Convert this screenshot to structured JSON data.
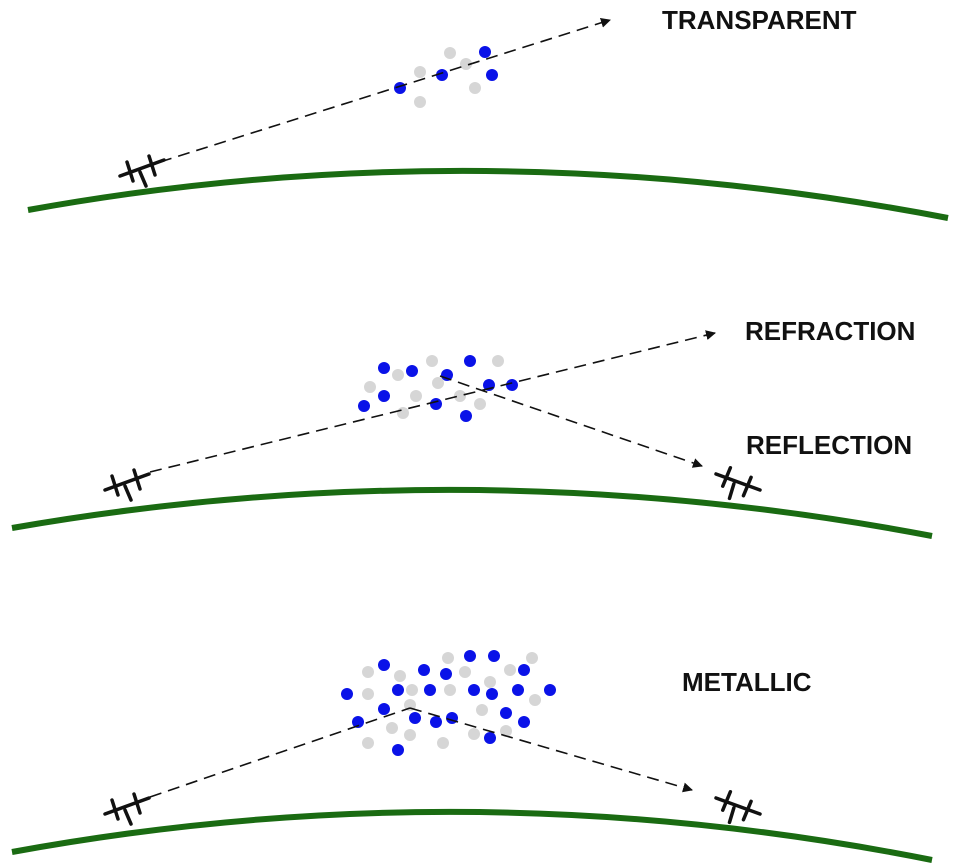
{
  "labels": {
    "transparent": "TRANSPARENT",
    "refraction": "REFRACTION",
    "reflection": "REFLECTION",
    "metallic": "METALLIC"
  }
}
